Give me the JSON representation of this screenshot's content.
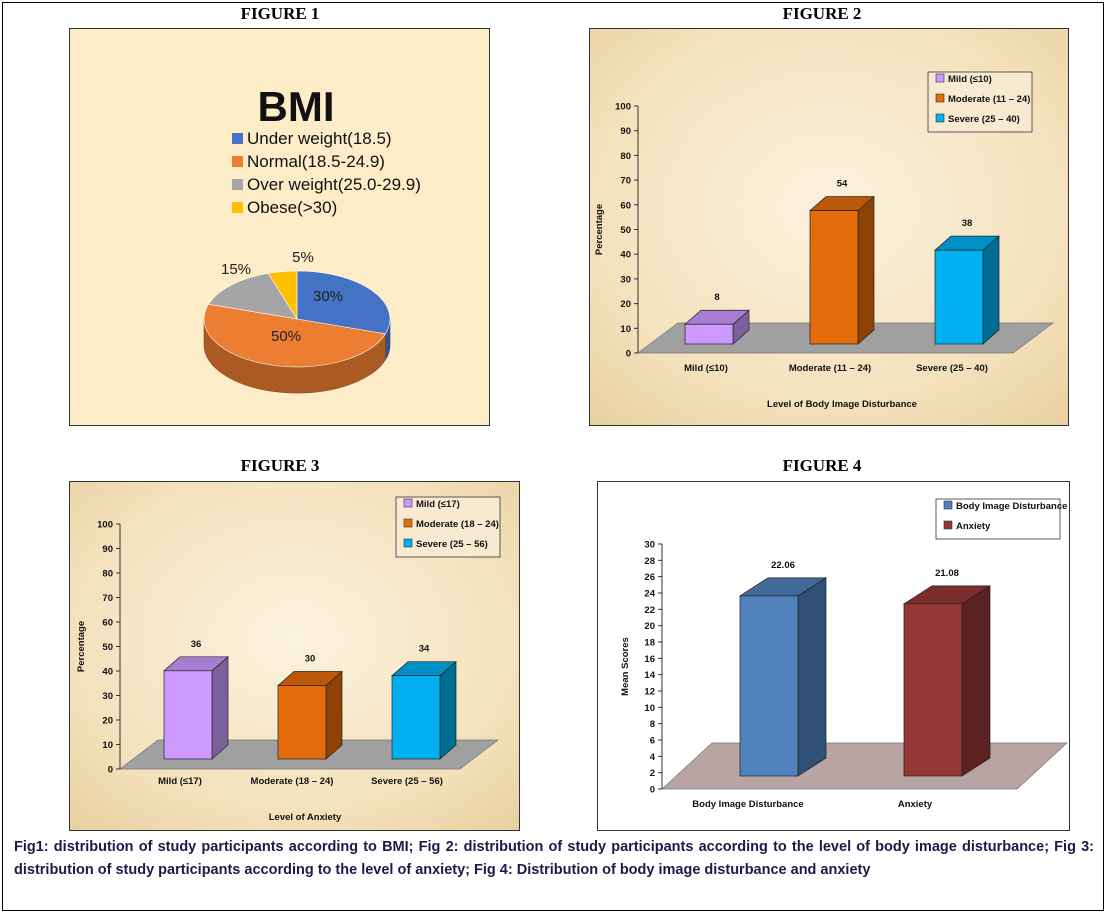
{
  "figures": [
    {
      "title": "FIGURE 1"
    },
    {
      "title": "FIGURE 2"
    },
    {
      "title": "FIGURE 3"
    },
    {
      "title": "FIGURE 4"
    }
  ],
  "caption": "Fig1:  distribution of study participants according to BMI; Fig 2: distribution of study participants according to the level of body image disturbance; Fig 3: distribution of study participants according to the level of anxiety; Fig 4: Distribution of body image disturbance and anxiety",
  "chart_data": [
    {
      "type": "pie",
      "title": "BMI",
      "categories": [
        "Under weight(18.5)",
        "Normal(18.5-24.9)",
        "Over weight(25.0-29.9)",
        "Obese(>30)"
      ],
      "values": [
        30,
        50,
        15,
        5
      ],
      "value_labels": [
        "30%",
        "50%",
        "15%",
        "5%"
      ],
      "colors": [
        "#4472c4",
        "#ed7d31",
        "#a5a5a5",
        "#ffc000"
      ],
      "legend": "top",
      "background": "#fdecc8"
    },
    {
      "type": "bar",
      "categories": [
        "Mild (≤10)",
        "Moderate (11 – 24)",
        "Severe (25 – 40)"
      ],
      "values": [
        8,
        54,
        38
      ],
      "value_labels": [
        "8",
        "54",
        "38"
      ],
      "colors": [
        "#cc99ff",
        "#e46c0a",
        "#00b0f0"
      ],
      "ylabel": "Percentage",
      "xlabel": "Level of Body Image Disturbance",
      "ylim": [
        0,
        100
      ],
      "yticks": [
        "0",
        "10",
        "20",
        "30",
        "40",
        "50",
        "60",
        "70",
        "80",
        "90",
        "100"
      ],
      "legend": "top-right"
    },
    {
      "type": "bar",
      "categories": [
        "Mild (≤17)",
        "Moderate (18 – 24)",
        "Severe (25 – 56)"
      ],
      "values": [
        36,
        30,
        34
      ],
      "value_labels": [
        "36",
        "30",
        "34"
      ],
      "colors": [
        "#cc99ff",
        "#e46c0a",
        "#00b0f0"
      ],
      "ylabel": "Percentage",
      "xlabel": "Level of Anxiety",
      "ylim": [
        0,
        100
      ],
      "yticks": [
        "0",
        "10",
        "20",
        "30",
        "40",
        "50",
        "60",
        "70",
        "80",
        "90",
        "100"
      ],
      "legend": "top-right"
    },
    {
      "type": "bar",
      "categories": [
        "Body Image Disturbance",
        "Anxiety"
      ],
      "values": [
        22.06,
        21.08
      ],
      "value_labels": [
        "22.06",
        "21.08"
      ],
      "colors": [
        "#4f81bd",
        "#953735"
      ],
      "ylabel": "Mean Scores",
      "xlabel": "",
      "ylim": [
        0,
        30
      ],
      "yticks": [
        "0",
        "2",
        "4",
        "6",
        "8",
        "10",
        "12",
        "14",
        "16",
        "18",
        "20",
        "22",
        "24",
        "26",
        "28",
        "30"
      ],
      "legend": "top-right"
    }
  ]
}
